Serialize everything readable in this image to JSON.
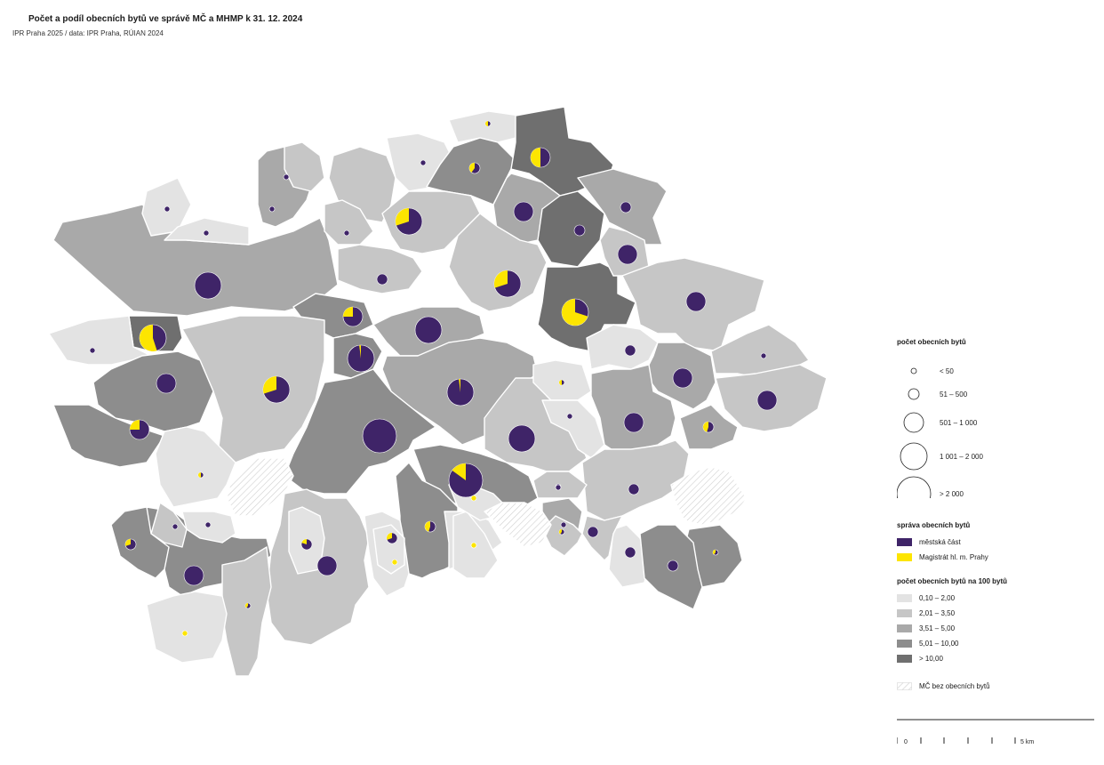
{
  "header": {
    "title": "Počet a podíl obecních bytů ve správě MČ a MHMP k 31. 12. 2024",
    "subtitle": "IPR Praha 2025 / data: IPR Praha, RÚIAN 2024"
  },
  "colors": {
    "cls1": "#e3e3e3",
    "cls2": "#c6c6c6",
    "cls3": "#a9a9a9",
    "cls4": "#8d8d8d",
    "cls5": "#6f6f6f",
    "mc": "#3f2468",
    "mhmp": "#fde500",
    "border": "#ffffff"
  },
  "legend": {
    "size_title": "počet obecních bytů",
    "sizes": [
      "< 50",
      "51 – 500",
      "501 – 1 000",
      "1 001 – 2 000",
      "> 2 000"
    ],
    "mgmt_title": "správa obecních bytů",
    "mgmt": [
      "městská část",
      "Magistrát hl. m. Prahy"
    ],
    "density_title": "počet obecních bytů na 100 bytů",
    "density": [
      "0,10 – 2,00",
      "2,01 – 3,50",
      "3,51 – 5,00",
      "5,01 – 10,00",
      "> 10,00"
    ],
    "none_label": "MČ bez obecních bytů"
  },
  "scale": {
    "start": "0",
    "end": "5 km"
  },
  "districts": [
    {
      "c": 3,
      "pie": {
        "s": 4,
        "f": 0.0
      }
    },
    {
      "c": 3,
      "pie": {
        "s": 1,
        "f": 0.0
      }
    },
    {
      "c": 1,
      "pie": {
        "s": 1,
        "f": 0.0
      }
    },
    {
      "c": 1,
      "pie": {
        "s": 1,
        "f": 0.0
      }
    },
    {
      "c": 2,
      "pie": {
        "s": 2,
        "f": 0.0
      }
    },
    {
      "c": 2,
      "pie": {
        "s": 1,
        "f": 0.0
      }
    },
    {
      "c": 2,
      "pie": {
        "s": 1,
        "f": 0.0
      }
    },
    {
      "c": 1,
      "pie": {
        "s": 1,
        "f": 0.0
      }
    },
    {
      "c": 1,
      "pie": {
        "s": 1,
        "f": 0.5
      }
    },
    {
      "c": 4,
      "pie": {
        "s": 2,
        "f": 0.4
      }
    },
    {
      "c": 5,
      "pie": {
        "s": 3,
        "f": 0.5
      }
    },
    {
      "c": 2,
      "pie": {
        "s": 4,
        "f": 0.3
      }
    },
    {
      "c": 2,
      "pie": {
        "s": 3,
        "f": 0.0
      }
    },
    {
      "c": 3,
      "pie": {
        "s": 2,
        "f": 0.0
      }
    },
    {
      "c": 2,
      "pie": {
        "s": 2,
        "f": 0.0
      }
    },
    {
      "c": 5,
      "pie": {
        "s": 3,
        "f": 0.0
      }
    },
    {
      "c": 5,
      "pie": {
        "s": 4,
        "f": 0.7
      }
    },
    {
      "c": 3,
      "pie": {
        "s": 3,
        "f": 0.0
      }
    },
    {
      "c": 2,
      "pie": {
        "s": 4,
        "f": 0.3
      }
    },
    {
      "c": 4,
      "pie": {
        "s": 3,
        "f": 0.25
      }
    },
    {
      "c": 5,
      "pie": {
        "s": 4,
        "f": 0.55
      }
    },
    {
      "c": 1,
      "pie": {
        "s": 1,
        "f": 0.0
      }
    },
    {
      "c": 2,
      "pie": {
        "s": 4,
        "f": 0.3
      }
    },
    {
      "c": 3,
      "pie": {
        "s": 4,
        "f": 0.0
      }
    },
    {
      "c": 4,
      "pie": {
        "s": 4,
        "f": 0.02
      }
    },
    {
      "c": 3,
      "pie": {
        "s": 4,
        "f": 0.02
      }
    },
    {
      "c": 4,
      "pie": {
        "s": 5,
        "f": 0.0
      }
    },
    {
      "c": 4,
      "pie": {
        "s": 5,
        "f": 0.15
      }
    },
    {
      "c": 2,
      "pie": {
        "s": 4,
        "f": 0.0
      }
    },
    {
      "c": 1,
      "pie": {
        "s": 1,
        "f": 0.5
      }
    },
    {
      "c": 2,
      "pie": {
        "s": 2,
        "f": 0.0
      }
    },
    {
      "c": 3,
      "pie": {
        "s": 3,
        "f": 0.0
      }
    },
    {
      "c": 2,
      "pie": {
        "s": 1,
        "f": 0.0
      }
    },
    {
      "c": 3,
      "pie": {
        "s": 3,
        "f": 0.0
      }
    },
    {
      "c": 2,
      "pie": {
        "s": 3,
        "f": 0.0
      }
    },
    {
      "c": 1,
      "pie": {
        "s": 1,
        "f": 0.0
      }
    },
    {
      "c": 1,
      "pie": {
        "s": 1,
        "f": 0.0
      }
    },
    {
      "c": 2,
      "pie": {
        "s": 2,
        "f": 0.0
      }
    },
    {
      "c": 4,
      "pie": {
        "s": 3,
        "f": 0.0
      }
    },
    {
      "c": 4,
      "pie": {
        "s": 3,
        "f": 0.25
      }
    },
    {
      "c": 3,
      "pie": {
        "s": 2,
        "f": 0.45
      }
    },
    {
      "c": 1,
      "pie": {
        "s": 1,
        "f": 0.5
      }
    },
    {
      "c": 4,
      "pie": {
        "s": 3,
        "f": 0.0
      }
    },
    {
      "c": 1,
      "pie": {
        "s": 1,
        "f": 0.0
      }
    },
    {
      "c": 2,
      "pie": {
        "s": 3,
        "f": 0.0
      }
    },
    {
      "c": 2,
      "pie": {
        "s": 1,
        "f": 0.4
      }
    },
    {
      "c": 2,
      "pie": {
        "s": 1,
        "f": 0.0
      }
    },
    {
      "c": 1,
      "pie": {
        "s": 1,
        "f": 1.0
      }
    },
    {
      "c": 4,
      "pie": {
        "s": 2,
        "f": 0.45
      }
    },
    {
      "c": 1,
      "pie": {
        "s": 2,
        "f": 0.3
      }
    },
    {
      "c": 1,
      "pie": {
        "s": 1,
        "f": 1.0
      }
    },
    {
      "c": 2,
      "pie": {
        "s": 1,
        "f": 0.0
      }
    },
    {
      "c": 3,
      "pie": {
        "s": 1,
        "f": 0.0
      }
    },
    {
      "c": 4,
      "pie": {
        "s": 1,
        "f": 0.4
      }
    },
    {
      "c": 1,
      "pie": {
        "s": 2,
        "f": 0.0
      }
    },
    {
      "c": 4,
      "pie": {
        "s": 2,
        "f": 0.0
      }
    },
    {
      "c": 2,
      "pie": {
        "s": 2,
        "f": 0.0
      }
    },
    {
      "c": 2,
      "pie": {
        "s": 1,
        "f": 0.4
      }
    },
    {
      "c": 1,
      "pie": {
        "s": 1,
        "f": 1.0
      }
    },
    {
      "c": 4,
      "pie": {
        "s": 2,
        "f": 0.3
      }
    },
    {
      "c": 1,
      "pie": {
        "s": 2,
        "f": 0.2
      }
    },
    {
      "c": 1,
      "pie": {
        "s": 1,
        "f": 1.0
      }
    },
    {
      "c": 1,
      "pie": {
        "s": 1,
        "f": 1.0
      }
    },
    {
      "c": 0,
      "pie": null
    },
    {
      "c": 0,
      "pie": null
    },
    {
      "c": 0,
      "pie": null
    }
  ]
}
